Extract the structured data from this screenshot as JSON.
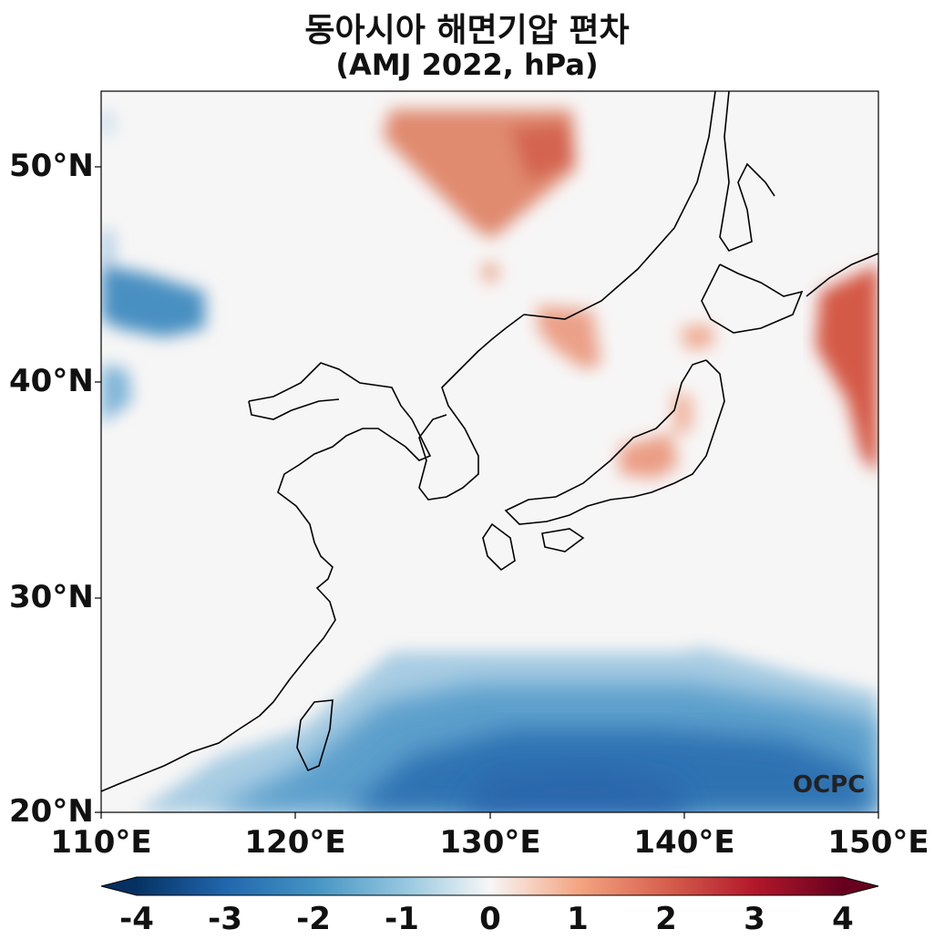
{
  "title": {
    "line1": "동아시아 해면기압 편차",
    "line2": "(AMJ 2022, hPa)"
  },
  "map": {
    "lon_range": [
      110,
      150
    ],
    "lat_range": [
      20,
      53.5
    ],
    "lat_ticks": [
      "50°N",
      "40°N",
      "30°N",
      "20°N"
    ],
    "lon_ticks": [
      "110°E",
      "120°E",
      "130°E",
      "140°E",
      "150°E"
    ],
    "background_color": "#f7f6f6",
    "coastline_color": "#000000"
  },
  "watermark": "OCPC",
  "colorbar": {
    "ticks": [
      "-4",
      "-3",
      "-2",
      "-1",
      "0",
      "1",
      "2",
      "3",
      "4"
    ],
    "colormap": "RdBu_r",
    "extend": "both"
  },
  "anomaly_regions": [
    {
      "name": "north-china-mongolia-positive",
      "sign": "positive",
      "max_hpa": 2
    },
    {
      "name": "northeast-korea-positive",
      "sign": "positive",
      "max_hpa": 1.5
    },
    {
      "name": "japan-honshu-positive",
      "sign": "positive",
      "max_hpa": 1.5
    },
    {
      "name": "northwest-pacific-positive",
      "sign": "positive",
      "max_hpa": 2.5
    },
    {
      "name": "inner-mongolia-negative",
      "sign": "negative",
      "min_hpa": -2
    },
    {
      "name": "western-north-pacific-negative",
      "sign": "negative",
      "min_hpa": -3
    }
  ]
}
